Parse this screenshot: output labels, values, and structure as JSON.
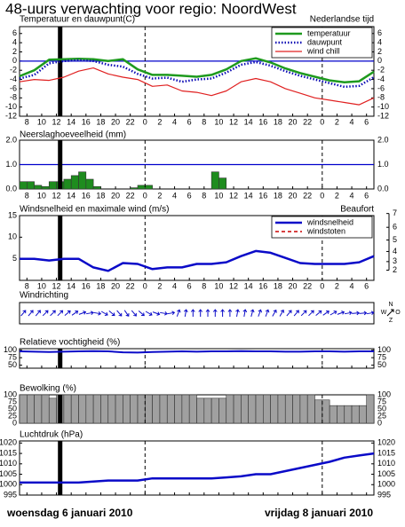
{
  "title": "48-uurs verwachting voor regio: NoordWest",
  "footer": {
    "left": "woensdag 6 januari 2010",
    "right": "vrijdag 8 januari 2010"
  },
  "time_axis": {
    "xlim": [
      7,
      55
    ],
    "xticks": [
      8,
      10,
      12,
      14,
      16,
      18,
      20,
      22,
      {
        "value": 24,
        "label": "0"
      },
      {
        "value": 26,
        "label": "2"
      },
      {
        "value": 28,
        "label": "4"
      },
      {
        "value": 30,
        "label": "6"
      },
      {
        "value": 32,
        "label": "8"
      },
      {
        "value": 34,
        "label": "10"
      },
      {
        "value": 36,
        "label": "12"
      },
      {
        "value": 38,
        "label": "14"
      },
      {
        "value": 40,
        "label": "16"
      },
      {
        "value": 42,
        "label": "18"
      },
      {
        "value": 44,
        "label": "20"
      },
      {
        "value": 46,
        "label": "22"
      },
      {
        "value": 48,
        "label": "0"
      },
      {
        "value": 50,
        "label": "2"
      },
      {
        "value": 52,
        "label": "4"
      },
      {
        "value": 54,
        "label": "6"
      }
    ],
    "current_time": 12.5,
    "midnights": [
      24,
      48
    ]
  },
  "chart_data": [
    {
      "type": "line",
      "title": "Temperatuur en dauwpunt(C)",
      "annotation": "Nederlandse tijd",
      "x": [
        7,
        9,
        11,
        13,
        15,
        17,
        19,
        21,
        23,
        25,
        27,
        29,
        31,
        33,
        35,
        37,
        39,
        41,
        43,
        45,
        47,
        49,
        51,
        53,
        55
      ],
      "series": [
        {
          "name": "temperatuur",
          "color": "#1e9a1e",
          "line_width": 2.5,
          "values": [
            -3.3,
            -2.0,
            0.3,
            0.4,
            0.5,
            0.4,
            0.0,
            0.4,
            -1.8,
            -3.0,
            -3.0,
            -3.2,
            -3.4,
            -3.0,
            -1.8,
            0.0,
            0.6,
            -0.3,
            -1.6,
            -2.6,
            -3.4,
            -4.2,
            -4.6,
            -4.4,
            -2.3
          ]
        },
        {
          "name": "dauwpunt",
          "color": "#0a0ab4",
          "line_width": 2.5,
          "dash": "dotted",
          "values": [
            -3.8,
            -3.0,
            -0.5,
            0.0,
            0.2,
            0.0,
            -0.8,
            -1.2,
            -2.8,
            -3.8,
            -3.6,
            -4.5,
            -4.0,
            -3.8,
            -2.5,
            -0.8,
            -0.2,
            -1.0,
            -2.2,
            -3.2,
            -4.0,
            -4.8,
            -5.6,
            -5.4,
            -3.5
          ]
        },
        {
          "name": "wind chill",
          "color": "#e02020",
          "line_width": 1.2,
          "values": [
            -4.5,
            -4.0,
            -4.2,
            -3.5,
            -2.2,
            -1.5,
            -2.8,
            -3.5,
            -4.0,
            -5.5,
            -5.2,
            -6.5,
            -6.8,
            -7.5,
            -6.5,
            -4.5,
            -3.8,
            -4.5,
            -6.0,
            -7.0,
            -8.0,
            -8.5,
            -9.0,
            -9.5,
            -8.0
          ]
        }
      ],
      "ylim": [
        -12,
        7.5
      ],
      "yticks": [
        -12,
        -10,
        -8,
        -6,
        -4,
        -2,
        0,
        2,
        4,
        6
      ],
      "mirror_yticks": true,
      "hline": {
        "value": 0,
        "color": "#0000cc"
      },
      "legend": "top-right",
      "xaxis_labels": true
    },
    {
      "type": "bar",
      "title": "Neerslaghoeveelheid (mm)",
      "color": "#1e8c1e",
      "x": [
        7,
        8,
        9,
        10,
        11,
        12,
        13,
        14,
        15,
        16,
        17,
        22,
        23,
        24,
        33,
        34
      ],
      "values": [
        0.3,
        0.3,
        0.15,
        0.1,
        0.3,
        0.3,
        0.4,
        0.55,
        0.7,
        0.4,
        0.1,
        0.05,
        0.15,
        0.15,
        0.7,
        0.45
      ],
      "ylim": [
        0,
        2
      ],
      "yticks": [
        {
          "value": 0,
          "label": "0.0"
        },
        {
          "value": 1,
          "label": "1.0"
        },
        {
          "value": 2,
          "label": "2.0"
        }
      ],
      "mirror_yticks": true,
      "hline": {
        "value": 1,
        "color": "#0000cc"
      },
      "xaxis_labels": true
    },
    {
      "type": "line",
      "title": "Windsnelheid en maximale wind (m/s)",
      "x": [
        7,
        9,
        11,
        13,
        15,
        17,
        19,
        21,
        23,
        25,
        27,
        29,
        31,
        33,
        35,
        37,
        39,
        41,
        43,
        45,
        47,
        49,
        51,
        53,
        55
      ],
      "series": [
        {
          "name": "windsnelheid",
          "color": "#0a0ac8",
          "line_width": 2.5,
          "values": [
            5.0,
            5.0,
            4.6,
            5.0,
            5.0,
            3.0,
            2.2,
            4.0,
            3.8,
            2.6,
            3.0,
            3.0,
            3.8,
            3.8,
            4.2,
            5.6,
            6.8,
            6.4,
            5.2,
            4.0,
            3.8,
            3.8,
            3.8,
            4.2,
            5.6
          ]
        },
        {
          "name": "windstoten",
          "color": "#cc0000",
          "line_width": 1.5,
          "dash": "dashed",
          "values": [
            null,
            null,
            null,
            null,
            null,
            null,
            null,
            null,
            null,
            null,
            null,
            null,
            null,
            null,
            null,
            null,
            null,
            null,
            null,
            null,
            null,
            null,
            null,
            null,
            null
          ]
        }
      ],
      "ylim": [
        0,
        15
      ],
      "yticks": [
        5,
        10,
        15
      ],
      "y2label": "Beaufort",
      "y2scale": "beaufort",
      "y2ticks": [
        2,
        3,
        4,
        5,
        6,
        7
      ],
      "legend": "top-right",
      "xaxis_labels": true
    },
    {
      "type": "arrows",
      "title": "Windrichting",
      "color": "#0a0ac8",
      "compass": {
        "n": "N",
        "w": "W",
        "s": "Z",
        "e": "O"
      },
      "x": [
        7,
        8,
        9,
        10,
        11,
        12,
        13,
        14,
        15,
        16,
        17,
        18,
        19,
        20,
        21,
        22,
        23,
        24,
        25,
        26,
        27,
        28,
        29,
        30,
        31,
        32,
        33,
        34,
        35,
        36,
        37,
        38,
        39,
        40,
        41,
        42,
        43,
        44,
        45,
        46,
        47,
        48,
        49,
        50,
        51,
        52,
        53,
        54
      ],
      "values": [
        40,
        40,
        40,
        45,
        45,
        45,
        50,
        55,
        70,
        80,
        100,
        120,
        130,
        140,
        145,
        140,
        130,
        120,
        110,
        100,
        80,
        20,
        10,
        0,
        0,
        0,
        0,
        0,
        0,
        10,
        10,
        15,
        20,
        20,
        30,
        30,
        40,
        40,
        45,
        45,
        50,
        55,
        60,
        70,
        80,
        85,
        85,
        80
      ]
    },
    {
      "type": "line",
      "title": "Relatieve vochtigheid (%)",
      "x": [
        7,
        9,
        11,
        13,
        15,
        17,
        19,
        21,
        23,
        25,
        27,
        29,
        31,
        33,
        35,
        37,
        39,
        41,
        43,
        45,
        47,
        49,
        51,
        53,
        55
      ],
      "series": [
        {
          "name": "vochtigheid",
          "color": "#0a0ac8",
          "line_width": 2,
          "values": [
            96,
            95,
            94,
            95,
            96,
            97,
            96,
            93,
            92,
            94,
            95,
            96,
            95,
            96,
            96,
            97,
            96,
            96,
            95,
            95,
            96,
            96,
            95,
            96,
            96
          ]
        }
      ],
      "ylim": [
        40,
        105
      ],
      "yticks": [
        50,
        75,
        100
      ],
      "mirror_yticks": true
    },
    {
      "type": "bar",
      "title": "Bewolking (%)",
      "color": "#a0a0a0",
      "x": [
        7,
        8,
        9,
        10,
        11,
        12,
        13,
        14,
        15,
        16,
        17,
        18,
        19,
        20,
        21,
        22,
        23,
        24,
        25,
        26,
        27,
        28,
        29,
        30,
        31,
        32,
        33,
        34,
        35,
        36,
        37,
        38,
        39,
        40,
        41,
        42,
        43,
        44,
        45,
        46,
        47,
        48,
        49,
        50,
        51,
        52,
        53,
        54
      ],
      "values": [
        100,
        100,
        100,
        100,
        88,
        100,
        100,
        100,
        100,
        100,
        100,
        100,
        100,
        100,
        100,
        100,
        100,
        100,
        100,
        100,
        100,
        100,
        100,
        100,
        88,
        88,
        88,
        88,
        100,
        100,
        100,
        100,
        100,
        100,
        100,
        100,
        100,
        100,
        100,
        100,
        82,
        82,
        62,
        62,
        62,
        62,
        62,
        100
      ],
      "ylim": [
        0,
        100
      ],
      "yticks": [
        0,
        25,
        50,
        75,
        100
      ],
      "mirror_yticks": true
    },
    {
      "type": "line",
      "title": "Luchtdruk (hPa)",
      "x": [
        7,
        9,
        11,
        13,
        15,
        17,
        19,
        21,
        23,
        25,
        27,
        29,
        31,
        33,
        35,
        37,
        39,
        41,
        43,
        45,
        47,
        49,
        51,
        53,
        55
      ],
      "series": [
        {
          "name": "luchtdruk",
          "color": "#0a0ac8",
          "line_width": 2.5,
          "values": [
            1001,
            1001,
            1001,
            1001,
            1001,
            1001.5,
            1002,
            1002,
            1002,
            1003,
            1003,
            1003,
            1003,
            1003,
            1003.5,
            1004,
            1005,
            1005,
            1006.5,
            1008,
            1009.5,
            1011,
            1013,
            1014,
            1015
          ]
        }
      ],
      "ylim": [
        995,
        1021
      ],
      "yticks": [
        995,
        1000,
        1005,
        1010,
        1015,
        1020
      ],
      "mirror_yticks": true
    }
  ]
}
